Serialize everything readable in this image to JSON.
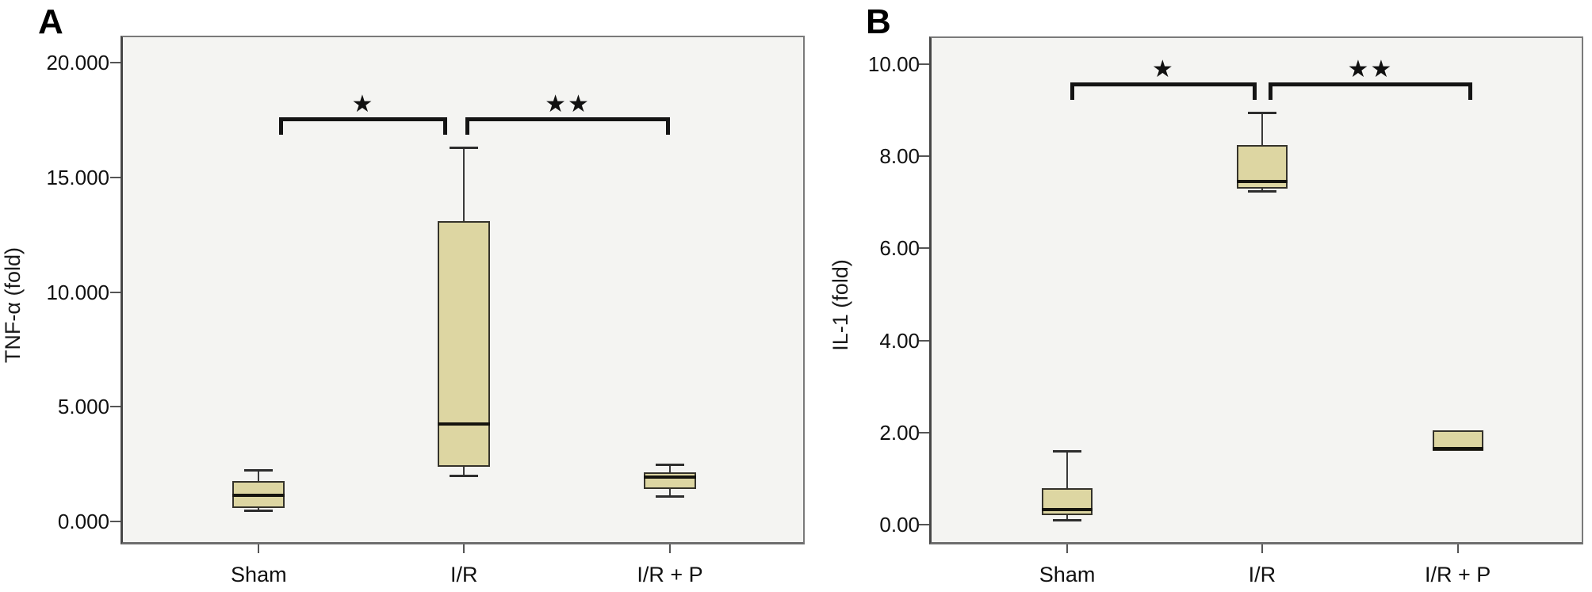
{
  "figure": {
    "background": "#ffffff",
    "description": "Two-panel box plot figure of cytokine fold changes across Sham, I/R and I/R + P groups"
  },
  "chart_data": [
    {
      "type": "box",
      "panel_label": "A",
      "ylabel": "TNF-α (fold)",
      "xlabel": "",
      "categories": [
        "Sham",
        "I/R",
        "I/R + P"
      ],
      "ylim": [
        0,
        20
      ],
      "ytick_values": [
        0,
        5,
        10,
        15,
        20
      ],
      "ytick_labels": [
        "0.000",
        "5.000",
        "10.000",
        "15.000",
        "20.000"
      ],
      "grid": false,
      "legend": null,
      "boxes": [
        {
          "category": "Sham",
          "whisker_low": 0.5,
          "q1": 0.6,
          "median": 1.15,
          "q3": 1.75,
          "whisker_high": 2.25
        },
        {
          "category": "I/R",
          "whisker_low": 2.0,
          "q1": 2.4,
          "median": 4.25,
          "q3": 13.1,
          "whisker_high": 16.3
        },
        {
          "category": "I/R + P",
          "whisker_low": 1.1,
          "q1": 1.4,
          "median": 1.95,
          "q3": 2.15,
          "whisker_high": 2.5
        }
      ],
      "significance_brackets": [
        {
          "groups": [
            "Sham",
            "I/R"
          ],
          "label": "★"
        },
        {
          "groups": [
            "I/R",
            "I/R + P"
          ],
          "label": "★★"
        }
      ],
      "colors": {
        "box_fill": "#ddd6a2",
        "box_border": "#35332b",
        "median": "#15140e",
        "whisker": "#3a3a3a",
        "plot_bg": "#f4f4f2",
        "axis": "#5f5f5f",
        "bracket": "#141414"
      }
    },
    {
      "type": "box",
      "panel_label": "B",
      "ylabel": "IL-1 (fold)",
      "xlabel": "",
      "categories": [
        "Sham",
        "I/R",
        "I/R + P"
      ],
      "ylim": [
        0,
        10
      ],
      "ytick_values": [
        0,
        2,
        4,
        6,
        8,
        10
      ],
      "ytick_labels": [
        "0.00",
        "2.00",
        "4.00",
        "6.00",
        "8.00",
        "10.00"
      ],
      "grid": false,
      "legend": null,
      "boxes": [
        {
          "category": "Sham",
          "whisker_low": 0.1,
          "q1": 0.2,
          "median": 0.33,
          "q3": 0.8,
          "whisker_high": 1.6
        },
        {
          "category": "I/R",
          "whisker_low": 7.25,
          "q1": 7.3,
          "median": 7.45,
          "q3": 8.25,
          "whisker_high": 8.95
        },
        {
          "category": "I/R + P",
          "whisker_low": null,
          "q1": 1.6,
          "median": 1.65,
          "q3": 2.05,
          "whisker_high": null
        }
      ],
      "significance_brackets": [
        {
          "groups": [
            "Sham",
            "I/R"
          ],
          "label": "★"
        },
        {
          "groups": [
            "I/R",
            "I/R + P"
          ],
          "label": "★★"
        }
      ],
      "colors": {
        "box_fill": "#ddd6a2",
        "box_border": "#35332b",
        "median": "#15140e",
        "whisker": "#3a3a3a",
        "plot_bg": "#f4f4f2",
        "axis": "#5f5f5f",
        "bracket": "#141414"
      }
    }
  ]
}
